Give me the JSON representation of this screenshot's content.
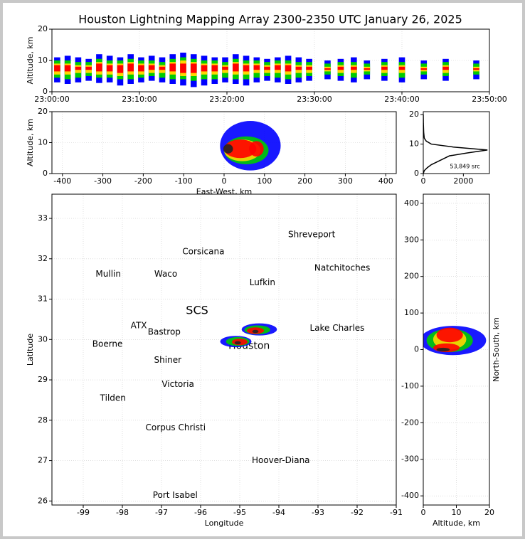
{
  "title": "Houston Lightning Mapping Array 2300-2350 UTC January 26, 2025",
  "chart_data": [
    {
      "type": "range",
      "ylabel": "Altitude, km",
      "xlim": [
        0,
        50
      ],
      "ylim": [
        0,
        20
      ],
      "grid": true,
      "xticks": [
        {
          "value": 0,
          "label": "23:00:00"
        },
        {
          "value": 10,
          "label": "23:10:00"
        },
        {
          "value": 20,
          "label": "23:20:00"
        },
        {
          "value": 30,
          "label": "23:30:00"
        },
        {
          "value": 40,
          "label": "23:40:00"
        },
        {
          "value": 50,
          "label": "23:50:00"
        }
      ],
      "yticks": [
        0,
        10,
        20
      ],
      "x": [
        0.6,
        1.8,
        3,
        4.2,
        5.4,
        6.6,
        7.8,
        9,
        10.2,
        11.4,
        12.6,
        13.8,
        15,
        16.2,
        17.4,
        18.6,
        19.8,
        21,
        22.2,
        23.4,
        24.6,
        25.8,
        27,
        28.2,
        29.4,
        31.5,
        33,
        34.5,
        36,
        38,
        40,
        42.5,
        45,
        48.5
      ],
      "series": [
        {
          "color": "#0000ff",
          "low": [
            3,
            2.5,
            3,
            3.5,
            2.8,
            3,
            2,
            2.5,
            3,
            3.5,
            3,
            2.5,
            2,
            1.5,
            2,
            2.5,
            3,
            2.5,
            2,
            3,
            3.5,
            3,
            2.5,
            3,
            3.5,
            4,
            3.5,
            3,
            4,
            3.5,
            3,
            4,
            3.5,
            4
          ],
          "high": [
            11,
            11.5,
            11,
            10.5,
            12,
            11.5,
            11,
            12,
            11,
            11.5,
            11,
            12,
            12.5,
            12,
            11.5,
            11,
            11,
            12,
            11.5,
            11,
            10.5,
            11,
            11.5,
            11,
            10.5,
            10,
            10.5,
            11,
            10,
            10.5,
            11,
            10,
            10.5,
            10
          ]
        },
        {
          "color": "#00cc00",
          "low": [
            4.5,
            4,
            4.5,
            5,
            4.5,
            4.5,
            4,
            4,
            4.5,
            5,
            4.5,
            4,
            4,
            3.5,
            4,
            4,
            4.5,
            4,
            4,
            4.5,
            5,
            4.5,
            4,
            4.5,
            5,
            5.5,
            5,
            4.5,
            5.5,
            5,
            4.5,
            5.5,
            5,
            5.5
          ],
          "high": [
            10,
            10,
            9.5,
            9.5,
            10.5,
            10,
            10,
            10.5,
            10,
            10,
            9.5,
            10.5,
            11,
            10.5,
            10,
            10,
            9.5,
            10.5,
            10,
            10,
            9.5,
            10,
            10,
            9.5,
            9.5,
            9,
            9.5,
            9.5,
            9,
            9.5,
            9.5,
            9,
            9.5,
            9
          ]
        },
        {
          "color": "#ffd700",
          "low": [
            5.5,
            5.5,
            6,
            6,
            5.5,
            5.5,
            5,
            5.5,
            5.5,
            6,
            6,
            5.5,
            5,
            5,
            5.5,
            5.5,
            6,
            5.5,
            5.5,
            6,
            6,
            6,
            5.5,
            6,
            6,
            6.5,
            6,
            6,
            6.5,
            6,
            6,
            6.5,
            6,
            6.5
          ],
          "high": [
            9,
            9,
            8.5,
            8.5,
            9.5,
            9,
            9,
            9.5,
            9,
            9,
            8.5,
            9.5,
            10,
            9.5,
            9,
            9,
            8.5,
            9.5,
            9,
            9,
            8.5,
            9,
            9,
            8.5,
            8.5,
            8,
            8.5,
            8.5,
            8,
            8.5,
            8.5,
            8,
            8.5,
            8
          ]
        },
        {
          "color": "#ff0000",
          "low": [
            6.5,
            6.5,
            7,
            7,
            6.5,
            6.5,
            6,
            6.5,
            6.5,
            7,
            7,
            6.5,
            6,
            6,
            6.5,
            6.5,
            7,
            6.5,
            6.5,
            7,
            7,
            7,
            6.5,
            7,
            7,
            7,
            7,
            7,
            7,
            7,
            7,
            7,
            7,
            7
          ],
          "high": [
            8.5,
            8.5,
            8,
            8,
            9,
            8.5,
            8.5,
            9,
            8.5,
            8.5,
            8,
            9,
            9,
            9,
            8.5,
            8.5,
            8,
            9,
            8.5,
            8.5,
            8,
            8.5,
            8.5,
            8,
            8,
            7.5,
            8,
            8,
            7.5,
            8,
            8,
            7.5,
            8,
            7.5
          ]
        }
      ]
    },
    {
      "type": "density",
      "xlabel": "East-West, km",
      "ylabel": "Altitude, km",
      "xlim": [
        -426,
        426
      ],
      "ylim": [
        0,
        20
      ],
      "grid": true,
      "xticks": [
        -400,
        -300,
        -200,
        -100,
        0,
        100,
        200,
        300,
        400
      ],
      "yticks": [
        0,
        10,
        20
      ],
      "series": [
        {
          "color": "#0000ff",
          "x": [
            65
          ],
          "y": [
            9
          ],
          "xspan": [
            75
          ],
          "yspan": [
            8
          ]
        },
        {
          "color": "#00cc00",
          "x": [
            55
          ],
          "y": [
            7.5
          ],
          "xspan": [
            55
          ],
          "yspan": [
            4.5
          ]
        },
        {
          "color": "#ffd700",
          "x": [
            45
          ],
          "y": [
            7.5
          ],
          "xspan": [
            45
          ],
          "yspan": [
            3.5
          ]
        },
        {
          "color": "#ff0000",
          "x": [
            40,
            80
          ],
          "y": [
            8,
            8
          ],
          "xspan": [
            40,
            18
          ],
          "yspan": [
            3,
            2.5
          ]
        },
        {
          "color": "#222222",
          "x": [
            10
          ],
          "y": [
            8
          ],
          "xspan": [
            12
          ],
          "yspan": [
            1.5
          ]
        }
      ]
    },
    {
      "type": "line",
      "annotation": "53,849 src",
      "xlim": [
        0,
        3300
      ],
      "ylim": [
        0,
        21
      ],
      "xticks": [
        0,
        2000
      ],
      "yticks": [
        0,
        10,
        20
      ],
      "x": [
        0,
        50,
        200,
        400,
        700,
        1000,
        1300,
        2200,
        3200,
        1500,
        400,
        150,
        50,
        20,
        5,
        0
      ],
      "y": [
        0,
        1,
        2,
        3,
        4,
        5,
        6,
        7,
        8,
        9,
        10,
        11,
        12,
        14,
        17,
        20
      ]
    },
    {
      "type": "map",
      "xlabel": "Longitude",
      "ylabel": "Latitude",
      "xlim": [
        -99.8,
        -91
      ],
      "ylim": [
        25.9,
        33.6
      ],
      "grid": true,
      "xticks": [
        -99,
        -98,
        -97,
        -96,
        -95,
        -94,
        -93,
        -92,
        -91
      ],
      "yticks": [
        26,
        27,
        28,
        29,
        30,
        31,
        32,
        33
      ],
      "places": [
        {
          "text": "Shreveport",
          "x": -93.16,
          "y": 32.6
        },
        {
          "text": "Corsicana",
          "x": -95.93,
          "y": 32.17
        },
        {
          "text": "Mullin",
          "x": -98.36,
          "y": 31.62,
          "color": "#f4a460"
        },
        {
          "text": "Waco",
          "x": -96.89,
          "y": 31.62
        },
        {
          "text": "Natchitoches",
          "x": -92.38,
          "y": 31.77
        },
        {
          "text": "Lufkin",
          "x": -94.42,
          "y": 31.41
        },
        {
          "text": "SCS",
          "x": -96.09,
          "y": 30.71,
          "color": "#8b0000",
          "size": 16
        },
        {
          "text": "ATX",
          "x": -97.58,
          "y": 30.34,
          "color": "#f4a460"
        },
        {
          "text": "Bastrop",
          "x": -96.93,
          "y": 30.18
        },
        {
          "text": "Lake Charles",
          "x": -92.51,
          "y": 30.28
        },
        {
          "text": "Boerne",
          "x": -98.38,
          "y": 29.88
        },
        {
          "text": "Houston",
          "x": -94.76,
          "y": 29.84,
          "color": "#ffa500",
          "size": 14
        },
        {
          "text": "Shiner",
          "x": -96.84,
          "y": 29.49
        },
        {
          "text": "Victoria",
          "x": -96.58,
          "y": 28.89
        },
        {
          "text": "Tilden",
          "x": -98.24,
          "y": 28.54
        },
        {
          "text": "Corpus Christi",
          "x": -96.64,
          "y": 27.81
        },
        {
          "text": "Hoover-Diana",
          "x": -93.95,
          "y": 27.0,
          "color": "#0000ff"
        },
        {
          "text": "Port Isabel",
          "x": -96.65,
          "y": 26.14
        }
      ],
      "series": [
        {
          "color": "#0000ff",
          "x": [
            -95.1,
            -94.5
          ],
          "y": [
            29.95,
            30.25
          ],
          "xspan": [
            0.4,
            0.45
          ],
          "yspan": [
            0.14,
            0.15
          ]
        },
        {
          "color": "#00cc00",
          "x": [
            -95.05,
            -94.55
          ],
          "y": [
            29.95,
            30.24
          ],
          "xspan": [
            0.3,
            0.33
          ],
          "yspan": [
            0.11,
            0.11
          ]
        },
        {
          "color": "#ff0000",
          "x": [
            -95.0,
            -94.6
          ],
          "y": [
            29.94,
            30.22
          ],
          "xspan": [
            0.2,
            0.22
          ],
          "yspan": [
            0.08,
            0.08
          ]
        },
        {
          "color": "#222222",
          "x": [
            -95.05,
            -94.6
          ],
          "y": [
            29.92,
            30.2
          ],
          "xspan": [
            0.08,
            0.08
          ],
          "yspan": [
            0.04,
            0.04
          ]
        }
      ]
    },
    {
      "type": "density",
      "xlabel": "Altitude, km",
      "ylabel": "North-South, km",
      "xlim": [
        0,
        20
      ],
      "ylim": [
        -425,
        425
      ],
      "grid": true,
      "xticks": [
        0,
        10,
        20
      ],
      "yticks": [
        -400,
        -300,
        -200,
        -100,
        0,
        100,
        200,
        300,
        400
      ],
      "series": [
        {
          "color": "#0000ff",
          "x": [
            9
          ],
          "y": [
            25
          ],
          "xspan": [
            10
          ],
          "yspan": [
            40
          ]
        },
        {
          "color": "#00cc00",
          "x": [
            8
          ],
          "y": [
            25
          ],
          "xspan": [
            7
          ],
          "yspan": [
            32
          ]
        },
        {
          "color": "#ffd700",
          "x": [
            8
          ],
          "y": [
            28
          ],
          "xspan": [
            5
          ],
          "yspan": [
            28
          ]
        },
        {
          "color": "#ff0000",
          "x": [
            8,
            7
          ],
          "y": [
            40,
            5
          ],
          "xspan": [
            4,
            4
          ],
          "yspan": [
            20,
            12
          ]
        },
        {
          "color": "#222222",
          "x": [
            6
          ],
          "y": [
            0
          ],
          "xspan": [
            2
          ],
          "yspan": [
            5
          ]
        }
      ]
    }
  ]
}
